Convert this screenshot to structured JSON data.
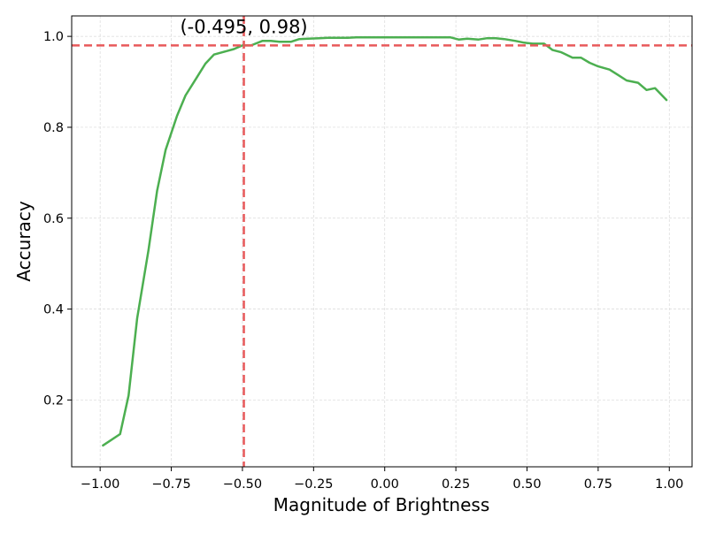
{
  "chart_data": {
    "type": "line",
    "xlabel": "Magnitude of Brightness",
    "ylabel": "Accuracy",
    "xlim": [
      -1.1,
      1.08
    ],
    "ylim": [
      0.053,
      1.045
    ],
    "xticks": [
      -1.0,
      -0.75,
      -0.5,
      -0.25,
      0.0,
      0.25,
      0.5,
      0.75,
      1.0
    ],
    "xtick_labels": [
      "−1.00",
      "−0.75",
      "−0.50",
      "−0.25",
      "0.00",
      "0.25",
      "0.50",
      "0.75",
      "1.00"
    ],
    "yticks": [
      0.2,
      0.4,
      0.6,
      0.8,
      1.0
    ],
    "ytick_labels": [
      "0.2",
      "0.4",
      "0.6",
      "0.8",
      "1.0"
    ],
    "grid": true,
    "series": [
      {
        "color": "#4caf50",
        "x": [
          -0.99,
          -0.93,
          -0.9,
          -0.87,
          -0.83,
          -0.8,
          -0.77,
          -0.73,
          -0.7,
          -0.66,
          -0.63,
          -0.6,
          -0.57,
          -0.53,
          -0.5,
          -0.47,
          -0.43,
          -0.4,
          -0.37,
          -0.33,
          -0.3,
          -0.27,
          -0.23,
          -0.2,
          -0.17,
          -0.13,
          -0.1,
          -0.07,
          -0.03,
          0.0,
          0.03,
          0.07,
          0.1,
          0.13,
          0.17,
          0.2,
          0.23,
          0.26,
          0.29,
          0.33,
          0.36,
          0.39,
          0.42,
          0.46,
          0.49,
          0.52,
          0.56,
          0.59,
          0.62,
          0.66,
          0.69,
          0.72,
          0.75,
          0.79,
          0.82,
          0.85,
          0.89,
          0.92,
          0.95,
          0.99
        ],
        "y": [
          0.1,
          0.125,
          0.21,
          0.38,
          0.53,
          0.66,
          0.75,
          0.825,
          0.87,
          0.91,
          0.94,
          0.96,
          0.965,
          0.972,
          0.98,
          0.98,
          0.99,
          0.99,
          0.988,
          0.988,
          0.994,
          0.995,
          0.996,
          0.997,
          0.997,
          0.997,
          0.998,
          0.998,
          0.998,
          0.998,
          0.998,
          0.998,
          0.998,
          0.998,
          0.998,
          0.998,
          0.998,
          0.993,
          0.995,
          0.993,
          0.996,
          0.996,
          0.994,
          0.99,
          0.986,
          0.984,
          0.984,
          0.97,
          0.965,
          0.953,
          0.953,
          0.942,
          0.934,
          0.927,
          0.915,
          0.903,
          0.898,
          0.882,
          0.886,
          0.86
        ]
      }
    ],
    "reference_lines": {
      "color": "#e8595b",
      "vertical_x": -0.495,
      "horizontal_y": 0.98
    },
    "annotation": {
      "text": "(-0.495, 0.98)",
      "x": -0.495,
      "y": 0.98
    }
  }
}
